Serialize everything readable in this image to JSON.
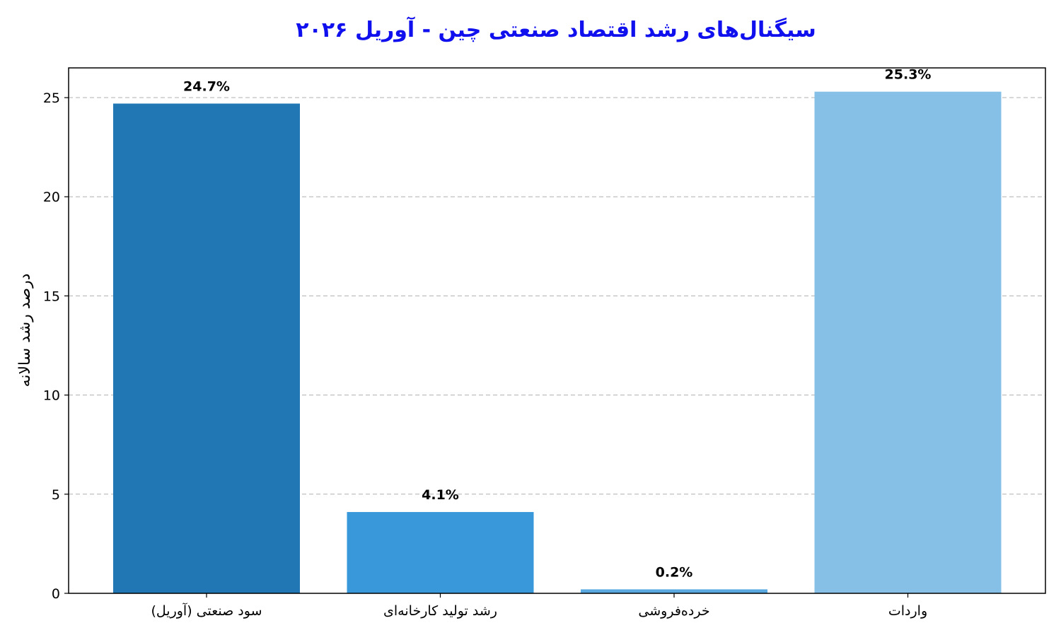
{
  "chart_data": {
    "type": "bar",
    "title": "سیگنال‌های رشد اقتصاد صنعتی چین - آوریل ۲۰۲۶",
    "title_color": "#1010ee",
    "xlabel": "",
    "ylabel": "درصد رشد سالانه",
    "categories": [
      "سود صنعتی (آوریل)",
      "رشد تولید کارخانه‌ای",
      "خرده‌فروشی",
      "واردات"
    ],
    "values": [
      24.7,
      4.1,
      0.2,
      25.3
    ],
    "value_labels": [
      "24.7%",
      "4.1%",
      "0.2%",
      "25.3%"
    ],
    "colors": [
      "#2077b4",
      "#3898d9",
      "#5aa8e0",
      "#86c0e7"
    ],
    "ylim": [
      0,
      26.5
    ],
    "yticks": [
      0,
      5,
      10,
      15,
      20,
      25
    ],
    "grid": true,
    "grid_axis": "y",
    "legend": "none"
  }
}
